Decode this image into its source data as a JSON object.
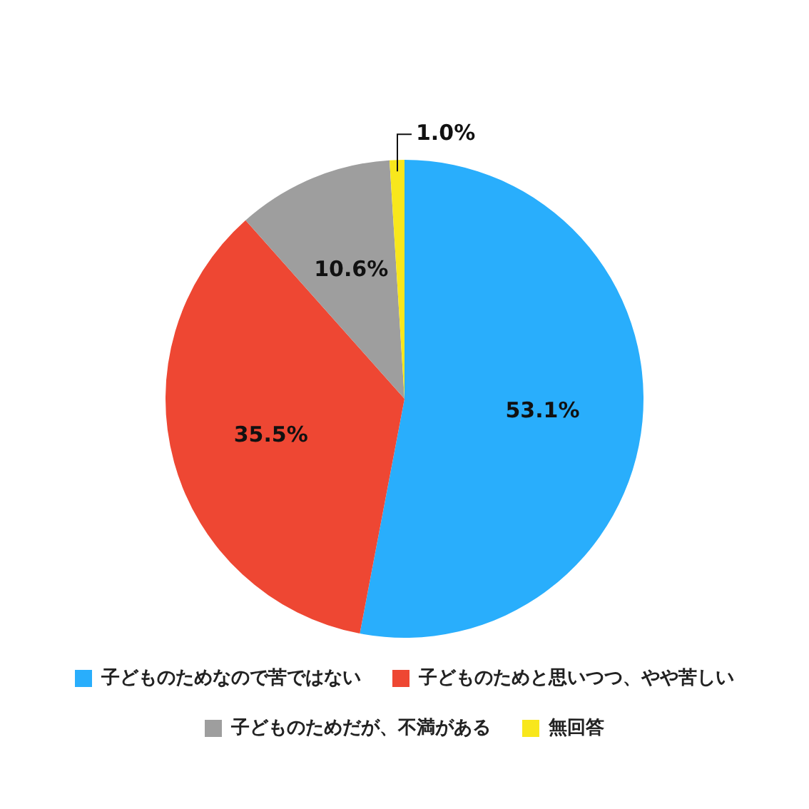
{
  "chart_data": {
    "type": "pie",
    "categories": [
      "子どものためなので苦ではない",
      "子どものためと思いつつ、やや苦しい",
      "子どものためだが、不満がある",
      "無回答"
    ],
    "values": [
      53.1,
      35.5,
      10.6,
      1.0
    ],
    "colors": [
      "#29aefc",
      "#ee4733",
      "#9e9e9e",
      "#f8e71c"
    ],
    "value_labels": [
      "53.1%",
      "35.5%",
      "10.6%",
      "1.0%"
    ],
    "legend": "bottom"
  }
}
